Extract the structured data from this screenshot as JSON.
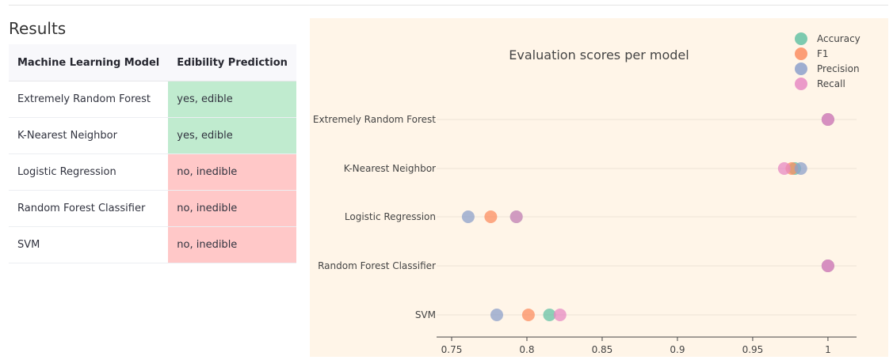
{
  "results": {
    "title": "Results",
    "columns": [
      "Machine Learning Model",
      "Edibility Prediction"
    ],
    "rows": [
      {
        "model": "Extremely Random Forest",
        "prediction": "yes, edible",
        "status": "edible"
      },
      {
        "model": "K-Nearest Neighbor",
        "prediction": "yes, edible",
        "status": "edible"
      },
      {
        "model": "Logistic Regression",
        "prediction": "no, inedible",
        "status": "inedible"
      },
      {
        "model": "Random Forest Classifier",
        "prediction": "no, inedible",
        "status": "inedible"
      },
      {
        "model": "SVM",
        "prediction": "no, inedible",
        "status": "inedible"
      }
    ]
  },
  "colors": {
    "chart_background": "#fff5e8",
    "edible": "#c0ebcf",
    "inedible": "#ffc8c8"
  },
  "chart_data": {
    "type": "scatter",
    "title": "Evaluation scores per model",
    "xlabel": "",
    "ylabel": "",
    "xlim": [
      0.74,
      1.019
    ],
    "x_ticks": [
      {
        "value": 0.75,
        "label": "0.75"
      },
      {
        "value": 0.8,
        "label": "0.8"
      },
      {
        "value": 0.85,
        "label": "0.85"
      },
      {
        "value": 0.9,
        "label": "0.9"
      },
      {
        "value": 0.95,
        "label": "0.95"
      },
      {
        "value": 1.0,
        "label": "1"
      }
    ],
    "categories": [
      "Extremely Random Forest",
      "K-Nearest Neighbor",
      "Logistic Regression",
      "Random Forest Classifier",
      "SVM"
    ],
    "grid": "horizontal",
    "legend_position": "top-right",
    "series": [
      {
        "name": "Accuracy",
        "color": "#66c2a5",
        "values": [
          1.0,
          0.978,
          0.793,
          1.0,
          0.815
        ]
      },
      {
        "name": "F1",
        "color": "#fc8d62",
        "values": [
          1.0,
          0.976,
          0.776,
          1.0,
          0.801
        ]
      },
      {
        "name": "Precision",
        "color": "#8da0cb",
        "values": [
          1.0,
          0.982,
          0.761,
          1.0,
          0.78
        ]
      },
      {
        "name": "Recall",
        "color": "#e78ac3",
        "values": [
          1.0,
          0.971,
          0.793,
          1.0,
          0.822
        ]
      }
    ]
  }
}
